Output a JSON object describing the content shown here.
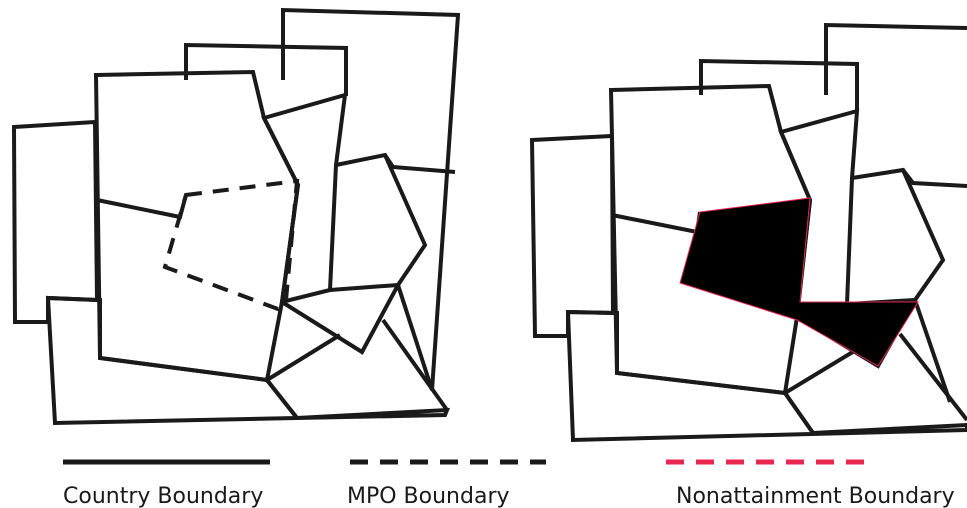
{
  "legend": {
    "country_label": "Country Boundary",
    "mpo_label": "MPO Boundary",
    "nonattainment_label": "Nonattainment Boundary"
  },
  "colors": {
    "country": "#1a1a1a",
    "mpo": "#1a1a1a",
    "nonattainment": "#e8264f"
  }
}
